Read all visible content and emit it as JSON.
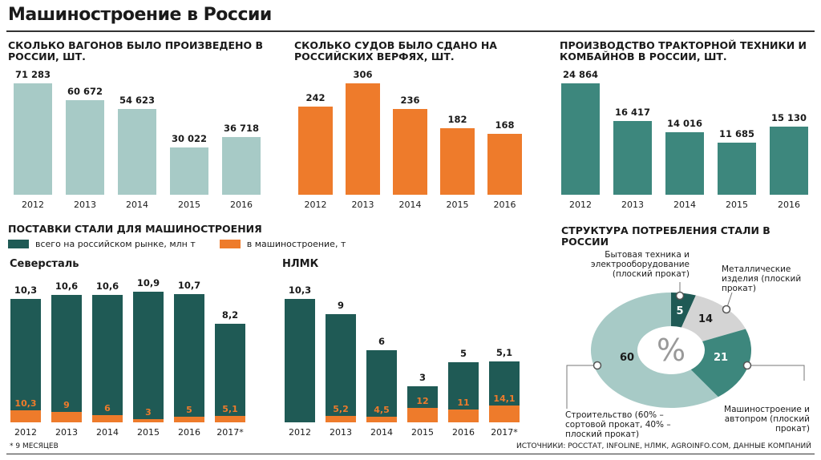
{
  "title": "Машиностроение в России",
  "colors": {
    "wagons": "#a7cac6",
    "ships": "#ee7b2b",
    "tractors": "#3d877d",
    "total": "#1f5a55",
    "machinery": "#ee7b2b",
    "pie": [
      "#1f5a55",
      "#d4d4d4",
      "#3d877d",
      "#a7cac6"
    ]
  },
  "chart_data": [
    {
      "type": "bar",
      "title": "СКОЛЬКО ВАГОНОВ БЫЛО ПРОИЗВЕДЕНО В РОССИИ, шт.",
      "categories": [
        "2012",
        "2013",
        "2014",
        "2015",
        "2016"
      ],
      "values": [
        71283,
        60672,
        54623,
        30022,
        36718
      ],
      "labels": [
        "71 283",
        "60 672",
        "54 623",
        "30 022",
        "36 718"
      ]
    },
    {
      "type": "bar",
      "title": "СКОЛЬКО СУДОВ БЫЛО СДАНО НА РОССИЙСКИХ ВЕРФЯХ, шт.",
      "categories": [
        "2012",
        "2013",
        "2014",
        "2015",
        "2016"
      ],
      "values": [
        242,
        306,
        236,
        182,
        168
      ],
      "labels": [
        "242",
        "306",
        "236",
        "182",
        "168"
      ]
    },
    {
      "type": "bar",
      "title": "ПРОИЗВОДСТВО ТРАКТОРНОЙ ТЕХНИКИ И КОМБАЙНОВ В РОССИИ, шт.",
      "categories": [
        "2012",
        "2013",
        "2014",
        "2015",
        "2016"
      ],
      "values": [
        24864,
        16417,
        14016,
        11685,
        15130
      ],
      "labels": [
        "24 864",
        "16 417",
        "14 016",
        "11 685",
        "15 130"
      ]
    },
    {
      "type": "bar",
      "title": "ПОСТАВКИ СТАЛИ ДЛЯ МАШИНОСТРОЕНИЯ",
      "legend": [
        "всего на российском рынке, млн т",
        "в машиностроение, т"
      ],
      "groups": [
        {
          "name": "Северсталь",
          "categories": [
            "2012",
            "2013",
            "2014",
            "2015",
            "2016",
            "2017*"
          ],
          "series": [
            {
              "name": "всего на российском рынке, млн т",
              "values": [
                10.3,
                10.6,
                10.6,
                10.9,
                10.7,
                8.2
              ],
              "labels": [
                "10,3",
                "10,6",
                "10,6",
                "10,9",
                "10,7",
                "8,2"
              ]
            },
            {
              "name": "в машиностроение, т",
              "values": [
                10.3,
                9,
                6,
                3,
                5,
                5.1
              ],
              "labels": [
                "10,3",
                "9",
                "6",
                "3",
                "5",
                "5,1"
              ]
            }
          ]
        },
        {
          "name": "НЛМК",
          "categories": [
            "2012",
            "2013",
            "2014",
            "2015",
            "2016",
            "2017*"
          ],
          "series": [
            {
              "name": "всего на российском рынке, млн т",
              "values": [
                10.3,
                9,
                6,
                3,
                5,
                5.1
              ],
              "labels": [
                "10,3",
                "9",
                "6",
                "3",
                "5",
                "5,1"
              ]
            },
            {
              "name": "в машиностроение, т",
              "values": [
                null,
                5.2,
                4.5,
                12,
                11,
                14.1
              ],
              "labels": [
                "",
                "5,2",
                "4,5",
                "12",
                "11",
                "14,1"
              ]
            }
          ]
        }
      ]
    },
    {
      "type": "pie",
      "title": "СТРУКТУРА ПОТРЕБЛЕНИЯ СТАЛИ В РОССИИ",
      "center_label": "%",
      "slices": [
        {
          "label": "Бытовая техника и электрооборудование (плоский прокат)",
          "value": 5
        },
        {
          "label": "Металлические изделия (плоский прокат)",
          "value": 14
        },
        {
          "label": "Машиностроение и автопром (плоский прокат)",
          "value": 21
        },
        {
          "label": "Строительство (60% – сортовой прокат, 40% – плоский прокат)",
          "value": 60
        }
      ]
    }
  ],
  "footnote": "* 9 МЕСЯЦЕВ",
  "sources": "ИСТОЧНИКИ: РОССТАТ, INFOLINE, НЛМК, AGROINFO.COM, ДАННЫЕ КОМПАНИЙ"
}
